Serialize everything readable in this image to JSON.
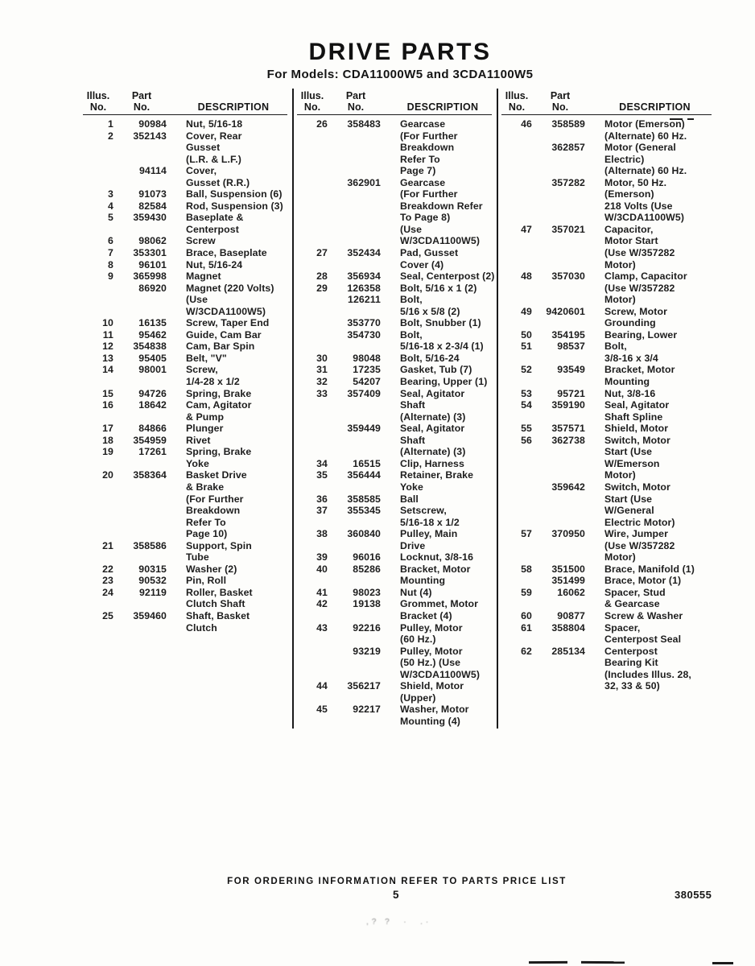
{
  "title": "DRIVE PARTS",
  "subtitle": "For Models: CDA11000W5 and 3CDA1100W5",
  "table": {
    "header": {
      "illus_label": "Illus.",
      "part_label": "Part",
      "no_label": "No.",
      "description_label": "DESCRIPTION"
    },
    "columns": [
      [
        {
          "illus": "1",
          "part": "90984",
          "desc": [
            "Nut, 5/16-18"
          ]
        },
        {
          "illus": "2",
          "part": "352143",
          "desc": [
            "Cover, Rear",
            "Gusset",
            "(L.R. & L.F.)"
          ]
        },
        {
          "illus": "",
          "part": "94114",
          "desc": [
            "Cover,",
            "Gusset (R.R.)"
          ]
        },
        {
          "illus": "3",
          "part": "91073",
          "desc": [
            "Ball, Suspension (6)"
          ]
        },
        {
          "illus": "4",
          "part": "82584",
          "desc": [
            "Rod, Suspension (3)"
          ]
        },
        {
          "illus": "5",
          "part": "359430",
          "desc": [
            "Baseplate &",
            "Centerpost"
          ]
        },
        {
          "illus": "6",
          "part": "98062",
          "desc": [
            "Screw"
          ]
        },
        {
          "illus": "7",
          "part": "353301",
          "desc": [
            "Brace, Baseplate"
          ]
        },
        {
          "illus": "8",
          "part": "96101",
          "desc": [
            "Nut, 5/16-24"
          ]
        },
        {
          "illus": "9",
          "part": "365998",
          "desc": [
            "Magnet"
          ]
        },
        {
          "illus": "",
          "part": "86920",
          "desc": [
            "Magnet (220 Volts)",
            "(Use",
            "W/3CDA1100W5)"
          ]
        },
        {
          "illus": "10",
          "part": "16135",
          "desc": [
            "Screw, Taper End"
          ]
        },
        {
          "illus": "11",
          "part": "95462",
          "desc": [
            "Guide, Cam Bar"
          ]
        },
        {
          "illus": "12",
          "part": "354838",
          "desc": [
            "Cam, Bar Spin"
          ]
        },
        {
          "illus": "13",
          "part": "95405",
          "desc": [
            "Belt, \"V\""
          ]
        },
        {
          "illus": "14",
          "part": "98001",
          "desc": [
            "Screw,",
            "1/4-28 x 1/2"
          ]
        },
        {
          "illus": "15",
          "part": "94726",
          "desc": [
            "Spring, Brake"
          ]
        },
        {
          "illus": "16",
          "part": "18642",
          "desc": [
            "Cam, Agitator",
            "& Pump"
          ]
        },
        {
          "illus": "17",
          "part": "84866",
          "desc": [
            "Plunger"
          ]
        },
        {
          "illus": "18",
          "part": "354959",
          "desc": [
            "Rivet"
          ]
        },
        {
          "illus": "19",
          "part": "17261",
          "desc": [
            "Spring, Brake",
            "Yoke"
          ]
        },
        {
          "illus": "20",
          "part": "358364",
          "desc": [
            "Basket Drive",
            "& Brake",
            "(For Further",
            "Breakdown",
            "Refer To",
            "Page 10)"
          ]
        },
        {
          "illus": "21",
          "part": "358586",
          "desc": [
            "Support, Spin",
            "Tube"
          ]
        },
        {
          "illus": "22",
          "part": "90315",
          "desc": [
            "Washer (2)"
          ]
        },
        {
          "illus": "23",
          "part": "90532",
          "desc": [
            "Pin, Roll"
          ]
        },
        {
          "illus": "24",
          "part": "92119",
          "desc": [
            "Roller, Basket",
            "Clutch Shaft"
          ]
        },
        {
          "illus": "25",
          "part": "359460",
          "desc": [
            "Shaft, Basket",
            "Clutch"
          ]
        }
      ],
      [
        {
          "illus": "26",
          "part": "358483",
          "desc": [
            "Gearcase",
            "(For Further",
            "Breakdown",
            "Refer To",
            "Page 7)"
          ]
        },
        {
          "illus": "",
          "part": "362901",
          "desc": [
            "Gearcase",
            "(For Further",
            "Breakdown Refer",
            "To Page 8)",
            "(Use",
            "W/3CDA1100W5)"
          ]
        },
        {
          "illus": "27",
          "part": "352434",
          "desc": [
            "Pad, Gusset",
            "Cover (4)"
          ]
        },
        {
          "illus": "28",
          "part": "356934",
          "desc": [
            "Seal, Centerpost (2)"
          ]
        },
        {
          "illus": "29",
          "part": "126358",
          "desc": [
            "Bolt, 5/16 x 1 (2)"
          ]
        },
        {
          "illus": "",
          "part": "126211",
          "desc": [
            "Bolt,",
            "5/16 x 5/8 (2)"
          ]
        },
        {
          "illus": "",
          "part": "353770",
          "desc": [
            "Bolt, Snubber (1)"
          ]
        },
        {
          "illus": "",
          "part": "354730",
          "desc": [
            "Bolt,",
            "5/16-18 x 2-3/4 (1)"
          ]
        },
        {
          "illus": "30",
          "part": "98048",
          "desc": [
            "Bolt, 5/16-24"
          ]
        },
        {
          "illus": "31",
          "part": "17235",
          "desc": [
            "Gasket, Tub (7)"
          ]
        },
        {
          "illus": "32",
          "part": "54207",
          "desc": [
            "Bearing, Upper (1)"
          ]
        },
        {
          "illus": "33",
          "part": "357409",
          "desc": [
            "Seal, Agitator",
            "Shaft",
            "(Alternate) (3)"
          ]
        },
        {
          "illus": "",
          "part": "359449",
          "desc": [
            "Seal, Agitator",
            "Shaft",
            "(Alternate) (3)"
          ]
        },
        {
          "illus": "34",
          "part": "16515",
          "desc": [
            "Clip, Harness"
          ]
        },
        {
          "illus": "35",
          "part": "356444",
          "desc": [
            "Retainer, Brake",
            "Yoke"
          ]
        },
        {
          "illus": "36",
          "part": "358585",
          "desc": [
            "Ball"
          ]
        },
        {
          "illus": "37",
          "part": "355345",
          "desc": [
            "Setscrew,",
            "5/16-18 x 1/2"
          ]
        },
        {
          "illus": "38",
          "part": "360840",
          "desc": [
            "Pulley, Main",
            "Drive"
          ]
        },
        {
          "illus": "39",
          "part": "96016",
          "desc": [
            "Locknut, 3/8-16"
          ]
        },
        {
          "illus": "40",
          "part": "85286",
          "desc": [
            "Bracket, Motor",
            "Mounting"
          ]
        },
        {
          "illus": "41",
          "part": "98023",
          "desc": [
            "Nut (4)"
          ]
        },
        {
          "illus": "42",
          "part": "19138",
          "desc": [
            "Grommet, Motor",
            "Bracket (4)"
          ]
        },
        {
          "illus": "43",
          "part": "92216",
          "desc": [
            "Pulley, Motor",
            "(60 Hz.)"
          ]
        },
        {
          "illus": "",
          "part": "93219",
          "desc": [
            "Pulley, Motor",
            "(50 Hz.) (Use",
            "W/3CDA1100W5)"
          ]
        },
        {
          "illus": "44",
          "part": "356217",
          "desc": [
            "Shield, Motor",
            "(Upper)"
          ]
        },
        {
          "illus": "45",
          "part": "92217",
          "desc": [
            "Washer, Motor",
            "Mounting (4)"
          ]
        }
      ],
      [
        {
          "illus": "46",
          "part": "358589",
          "desc": [
            "Motor (Emerson)",
            "(Alternate) 60 Hz."
          ]
        },
        {
          "illus": "",
          "part": "362857",
          "desc": [
            "Motor (General",
            "Electric)",
            "(Alternate) 60 Hz."
          ]
        },
        {
          "illus": "",
          "part": "357282",
          "desc": [
            "Motor, 50 Hz.",
            "(Emerson)",
            "218 Volts (Use",
            "W/3CDA1100W5)"
          ]
        },
        {
          "illus": "47",
          "part": "357021",
          "desc": [
            "Capacitor,",
            "Motor Start",
            "(Use W/357282",
            "Motor)"
          ]
        },
        {
          "illus": "48",
          "part": "357030",
          "desc": [
            "Clamp, Capacitor",
            "(Use W/357282",
            "Motor)"
          ]
        },
        {
          "illus": "49",
          "part": "9420601",
          "desc": [
            "Screw, Motor",
            "Grounding"
          ]
        },
        {
          "illus": "50",
          "part": "354195",
          "desc": [
            "Bearing, Lower"
          ]
        },
        {
          "illus": "51",
          "part": "98537",
          "desc": [
            "Bolt,",
            "3/8-16 x 3/4"
          ]
        },
        {
          "illus": "52",
          "part": "93549",
          "desc": [
            "Bracket, Motor",
            "Mounting"
          ]
        },
        {
          "illus": "53",
          "part": "95721",
          "desc": [
            "Nut, 3/8-16"
          ]
        },
        {
          "illus": "54",
          "part": "359190",
          "desc": [
            "Seal, Agitator",
            "Shaft Spline"
          ]
        },
        {
          "illus": "55",
          "part": "357571",
          "desc": [
            "Shield, Motor"
          ]
        },
        {
          "illus": "56",
          "part": "362738",
          "desc": [
            "Switch, Motor",
            "Start (Use",
            "W/Emerson",
            "Motor)"
          ]
        },
        {
          "illus": "",
          "part": "359642",
          "desc": [
            "Switch, Motor",
            "Start (Use",
            "W/General",
            "Electric Motor)"
          ]
        },
        {
          "illus": "57",
          "part": "370950",
          "desc": [
            "Wire, Jumper",
            "(Use W/357282",
            "Motor)"
          ]
        },
        {
          "illus": "58",
          "part": "351500",
          "desc": [
            "Brace, Manifold (1)"
          ]
        },
        {
          "illus": "",
          "part": "351499",
          "desc": [
            "Brace, Motor (1)"
          ]
        },
        {
          "illus": "59",
          "part": "16062",
          "desc": [
            "Spacer, Stud",
            "& Gearcase"
          ]
        },
        {
          "illus": "60",
          "part": "90877",
          "desc": [
            "Screw & Washer"
          ]
        },
        {
          "illus": "61",
          "part": "358804",
          "desc": [
            "Spacer,",
            "Centerpost Seal"
          ]
        },
        {
          "illus": "62",
          "part": "285134",
          "desc": [
            "Centerpost",
            "Bearing Kit",
            "(Includes Illus. 28,",
            "32, 33 & 50)"
          ]
        }
      ]
    ]
  },
  "footer": {
    "ordering_note": "FOR ORDERING INFORMATION REFER TO PARTS PRICE LIST",
    "page_number": "5",
    "doc_number": "380555"
  },
  "colors": {
    "ink": "#1a1a1a",
    "paper": "#fdfdfb"
  }
}
